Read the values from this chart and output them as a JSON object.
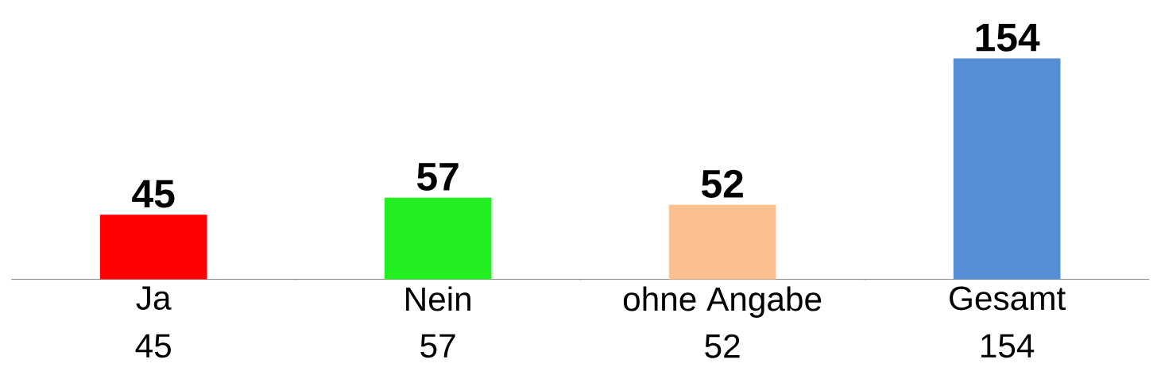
{
  "chart_data": {
    "type": "bar",
    "categories": [
      "Ja",
      "Nein",
      "ohne Angabe",
      "Gesamt"
    ],
    "values": [
      45,
      57,
      52,
      154
    ],
    "colors": [
      "#ff0000",
      "#22ee22",
      "#fac090",
      "#558ed5"
    ],
    "value_labels": [
      "45",
      "57",
      "52",
      "154"
    ],
    "data_labels": true,
    "annotations": [
      "45",
      "57",
      "52",
      "154"
    ]
  }
}
